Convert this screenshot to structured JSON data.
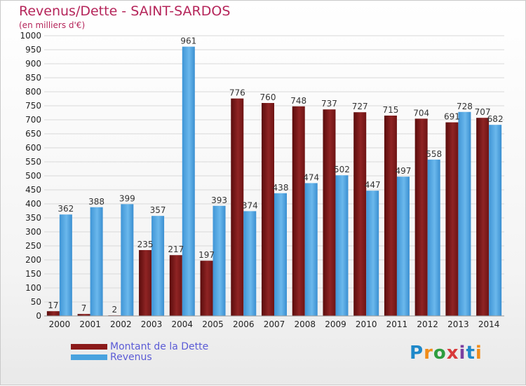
{
  "header": {
    "title": "Revenus/Dette - SAINT-SARDOS",
    "subtitle": "(en milliers d'€)"
  },
  "brand": {
    "letters": [
      "P",
      "r",
      "o",
      "x",
      "i",
      "t",
      "i"
    ],
    "colors": [
      "#1e88c9",
      "#f08c1a",
      "#2e9d3f",
      "#d83a3a",
      "#7b3fa0",
      "#1e88c9",
      "#f08c1a"
    ]
  },
  "colors": {
    "debt": "#8b1a1a",
    "revenue": "#4aa3df",
    "title": "#b5255a",
    "legend_text": "#5b5bd6"
  },
  "chart_data": {
    "type": "bar",
    "title": "Revenus/Dette - SAINT-SARDOS",
    "subtitle": "(en milliers d'€)",
    "categories": [
      "2000",
      "2001",
      "2002",
      "2003",
      "2004",
      "2005",
      "2006",
      "2007",
      "2008",
      "2009",
      "2010",
      "2011",
      "2012",
      "2013",
      "2014"
    ],
    "series": [
      {
        "name": "Montant de la Dette",
        "values": [
          17,
          7,
          2,
          235,
          217,
          197,
          776,
          760,
          748,
          737,
          727,
          715,
          704,
          691,
          707
        ]
      },
      {
        "name": "Revenus",
        "values": [
          362,
          388,
          399,
          357,
          961,
          393,
          374,
          438,
          474,
          502,
          447,
          497,
          558,
          728,
          682
        ]
      }
    ],
    "ylim": [
      0,
      1000
    ],
    "yticks": [
      0,
      50,
      100,
      150,
      200,
      250,
      300,
      350,
      400,
      450,
      500,
      550,
      600,
      650,
      700,
      750,
      800,
      850,
      900,
      950,
      1000
    ],
    "grid": true,
    "legend": "bottom-left"
  }
}
